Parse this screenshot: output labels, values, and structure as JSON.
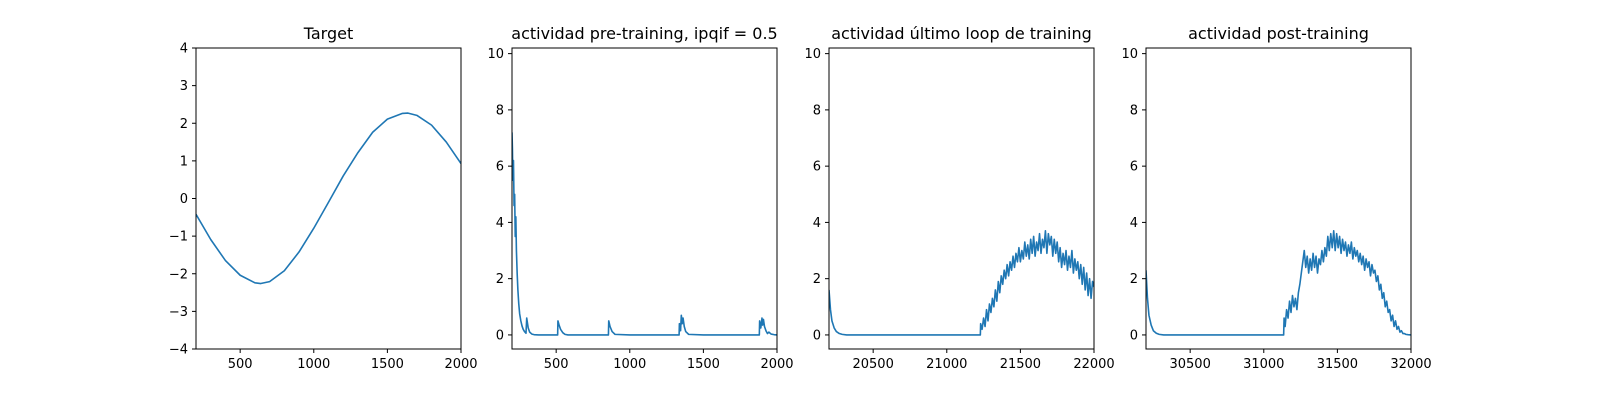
{
  "chart_data": [
    {
      "type": "line",
      "title": "Target",
      "xlabel": "",
      "ylabel": "",
      "xlim": [
        200,
        2000
      ],
      "ylim": [
        -4,
        4
      ],
      "xticks": [
        500,
        1000,
        1500,
        2000
      ],
      "xtick_labels": [
        "500",
        "1000",
        "1500",
        "2000"
      ],
      "yticks": [
        -4,
        -3,
        -2,
        -1,
        0,
        1,
        2,
        3,
        4
      ],
      "ytick_labels": [
        "−4",
        "−3",
        "−2",
        "−1",
        "0",
        "1",
        "2",
        "3",
        "4"
      ],
      "grid": false,
      "series": [
        {
          "color": "#1f77b4",
          "x": [
            200,
            300,
            400,
            500,
            600,
            640,
            700,
            800,
            900,
            1000,
            1100,
            1200,
            1300,
            1400,
            1500,
            1600,
            1640,
            1700,
            1800,
            1900,
            2000
          ],
          "y": [
            -0.42,
            -1.09,
            -1.65,
            -2.04,
            -2.24,
            -2.26,
            -2.21,
            -1.92,
            -1.42,
            -0.79,
            -0.1,
            0.6,
            1.22,
            1.76,
            2.11,
            2.26,
            2.27,
            2.21,
            1.95,
            1.5,
            0.93
          ]
        }
      ]
    },
    {
      "type": "line",
      "title": "actividad pre-training, ipqif = 0.5",
      "xlabel": "",
      "ylabel": "",
      "xlim": [
        200,
        2000
      ],
      "ylim": [
        -0.5,
        10.2
      ],
      "xticks": [
        500,
        1000,
        1500,
        2000
      ],
      "xtick_labels": [
        "500",
        "1000",
        "1500",
        "2000"
      ],
      "yticks": [
        0,
        2,
        4,
        6,
        8,
        10
      ],
      "ytick_labels": [
        "0",
        "2",
        "4",
        "6",
        "8",
        "10"
      ],
      "grid": false,
      "series": [
        {
          "color": "#1f77b4",
          "x": [
            200,
            203,
            206,
            210,
            214,
            218,
            222,
            226,
            230,
            235,
            240,
            246,
            252,
            260,
            268,
            276,
            285,
            295,
            300,
            310,
            320,
            335,
            350,
            380,
            420,
            460,
            500,
            510,
            512,
            520,
            530,
            545,
            560,
            580,
            620,
            700,
            800,
            855,
            857,
            866,
            880,
            900,
            1000,
            1100,
            1200,
            1300,
            1335,
            1337,
            1345,
            1350,
            1356,
            1362,
            1370,
            1380,
            1400,
            1500,
            1600,
            1700,
            1800,
            1880,
            1882,
            1890,
            1898,
            1902,
            1908,
            1915,
            1925,
            1935,
            1945,
            1960,
            1980,
            2000
          ],
          "y": [
            7.2,
            6.6,
            5.5,
            6.2,
            4.6,
            5.0,
            3.5,
            4.2,
            3.0,
            2.2,
            1.6,
            1.1,
            0.75,
            0.5,
            0.32,
            0.2,
            0.12,
            0.06,
            0.6,
            0.25,
            0.1,
            0.03,
            0.01,
            0.0,
            0.0,
            0.0,
            0.0,
            0.0,
            0.5,
            0.35,
            0.2,
            0.08,
            0.02,
            0.0,
            0.0,
            0.0,
            0.0,
            0.0,
            0.5,
            0.3,
            0.12,
            0.02,
            0.0,
            0.0,
            0.0,
            0.0,
            0.0,
            0.4,
            0.15,
            0.7,
            0.4,
            0.6,
            0.3,
            0.12,
            0.02,
            0.0,
            0.0,
            0.0,
            0.0,
            0.0,
            0.5,
            0.25,
            0.6,
            0.35,
            0.55,
            0.3,
            0.15,
            0.05,
            0.1,
            0.03,
            0.01,
            0.0
          ]
        }
      ]
    },
    {
      "type": "line",
      "title": "actividad último loop de training",
      "xlabel": "",
      "ylabel": "",
      "xlim": [
        20200,
        22000
      ],
      "ylim": [
        -0.5,
        10.2
      ],
      "xticks": [
        20500,
        21000,
        21500,
        22000
      ],
      "xtick_labels": [
        "20500",
        "21000",
        "21500",
        "22000"
      ],
      "yticks": [
        0,
        2,
        4,
        6,
        8,
        10
      ],
      "ytick_labels": [
        "0",
        "2",
        "4",
        "6",
        "8",
        "10"
      ],
      "grid": false,
      "series": [
        {
          "color": "#1f77b4",
          "x": [
            20200,
            20210,
            20220,
            20235,
            20250,
            20270,
            20290,
            20320,
            20400,
            20600,
            20800,
            21000,
            21228,
            21230,
            21240,
            21250,
            21260,
            21270,
            21280,
            21290,
            21300,
            21310,
            21320,
            21330,
            21340,
            21350,
            21360,
            21370,
            21380,
            21390,
            21400,
            21410,
            21420,
            21430,
            21440,
            21450,
            21460,
            21470,
            21480,
            21490,
            21500,
            21510,
            21520,
            21530,
            21540,
            21550,
            21560,
            21570,
            21580,
            21590,
            21600,
            21610,
            21620,
            21630,
            21640,
            21650,
            21660,
            21670,
            21680,
            21690,
            21700,
            21710,
            21720,
            21730,
            21740,
            21750,
            21760,
            21770,
            21780,
            21790,
            21800,
            21810,
            21820,
            21830,
            21840,
            21850,
            21860,
            21870,
            21880,
            21890,
            21900,
            21910,
            21920,
            21930,
            21940,
            21950,
            21960,
            21970,
            21980,
            21990,
            22000
          ],
          "y": [
            1.6,
            0.9,
            0.5,
            0.25,
            0.12,
            0.05,
            0.02,
            0.0,
            0.0,
            0.0,
            0.0,
            0.0,
            0.0,
            0.4,
            0.2,
            0.6,
            0.3,
            0.9,
            0.5,
            1.1,
            0.8,
            1.3,
            1.0,
            1.6,
            1.2,
            1.9,
            1.5,
            2.1,
            1.8,
            2.3,
            2.0,
            2.5,
            2.1,
            2.6,
            2.3,
            2.8,
            2.4,
            2.9,
            2.6,
            3.1,
            2.6,
            3.0,
            2.7,
            3.3,
            2.8,
            3.2,
            2.7,
            3.4,
            2.9,
            3.5,
            2.8,
            3.3,
            3.0,
            3.6,
            2.9,
            3.4,
            3.1,
            3.7,
            2.9,
            3.6,
            3.2,
            3.5,
            2.8,
            3.4,
            2.9,
            3.3,
            2.6,
            3.1,
            2.4,
            2.9,
            2.5,
            3.0,
            2.3,
            2.8,
            2.4,
            3.0,
            2.2,
            2.7,
            2.3,
            2.6,
            2.0,
            2.5,
            1.8,
            2.4,
            1.6,
            2.2,
            1.4,
            2.0,
            1.3,
            1.9,
            1.7
          ]
        }
      ]
    },
    {
      "type": "line",
      "title": "actividad post-training",
      "xlabel": "",
      "ylabel": "",
      "xlim": [
        30200,
        32000
      ],
      "ylim": [
        -0.5,
        10.2
      ],
      "xticks": [
        30500,
        31000,
        31500,
        32000
      ],
      "xtick_labels": [
        "30500",
        "31000",
        "31500",
        "32000"
      ],
      "yticks": [
        0,
        2,
        4,
        6,
        8,
        10
      ],
      "ytick_labels": [
        "0",
        "2",
        "4",
        "6",
        "8",
        "10"
      ],
      "grid": false,
      "series": [
        {
          "color": "#1f77b4",
          "x": [
            30200,
            30210,
            30220,
            30235,
            30250,
            30270,
            30290,
            30320,
            30400,
            30600,
            30800,
            31000,
            31135,
            31138,
            31145,
            31155,
            31165,
            31175,
            31185,
            31195,
            31205,
            31215,
            31225,
            31235,
            31245,
            31255,
            31265,
            31275,
            31285,
            31295,
            31305,
            31315,
            31325,
            31335,
            31345,
            31355,
            31365,
            31375,
            31385,
            31395,
            31405,
            31415,
            31425,
            31435,
            31445,
            31455,
            31465,
            31475,
            31485,
            31495,
            31505,
            31515,
            31525,
            31535,
            31545,
            31555,
            31565,
            31575,
            31585,
            31595,
            31605,
            31615,
            31625,
            31635,
            31645,
            31655,
            31665,
            31675,
            31685,
            31695,
            31705,
            31715,
            31725,
            31735,
            31745,
            31755,
            31765,
            31775,
            31785,
            31795,
            31805,
            31815,
            31825,
            31835,
            31845,
            31855,
            31865,
            31875,
            31885,
            31895,
            31905,
            31915,
            31925,
            31935,
            31945,
            31955,
            31965,
            31980,
            32000
          ],
          "y": [
            2.3,
            1.3,
            0.7,
            0.35,
            0.15,
            0.06,
            0.02,
            0.0,
            0.0,
            0.0,
            0.0,
            0.0,
            0.0,
            0.6,
            0.3,
            0.9,
            0.6,
            1.2,
            0.8,
            1.4,
            1.0,
            1.3,
            0.9,
            1.5,
            1.8,
            2.2,
            2.6,
            3.0,
            2.4,
            2.8,
            2.2,
            2.7,
            2.3,
            2.9,
            2.4,
            2.8,
            2.2,
            2.7,
            2.5,
            3.0,
            2.6,
            3.1,
            2.8,
            3.5,
            3.0,
            3.6,
            3.1,
            3.7,
            3.0,
            3.6,
            3.1,
            3.5,
            2.9,
            3.4,
            3.0,
            3.3,
            2.8,
            3.2,
            2.9,
            3.3,
            2.7,
            3.1,
            2.8,
            3.0,
            2.6,
            2.9,
            2.5,
            2.8,
            2.3,
            2.7,
            2.4,
            2.6,
            2.1,
            2.5,
            2.2,
            2.3,
            1.9,
            2.1,
            1.6,
            1.8,
            1.3,
            1.5,
            1.0,
            1.2,
            0.8,
            0.9,
            0.5,
            0.7,
            0.3,
            0.5,
            0.2,
            0.3,
            0.1,
            0.15,
            0.05,
            0.05,
            0.02,
            0.01,
            0.0
          ]
        }
      ]
    }
  ]
}
